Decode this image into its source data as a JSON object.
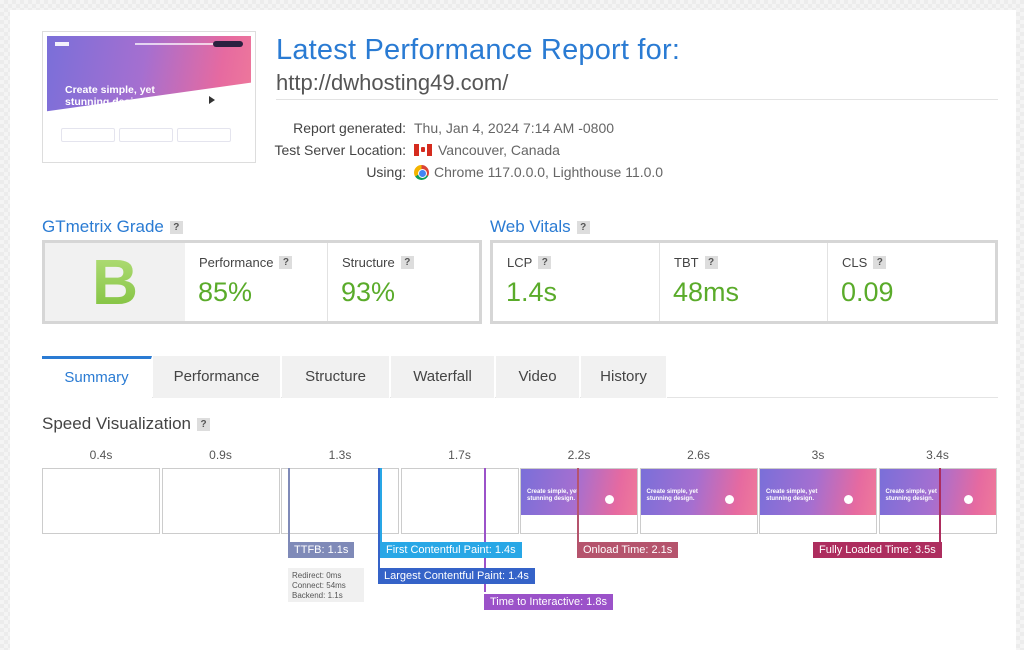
{
  "header": {
    "title": "Latest Performance Report for:",
    "url": "http://dwhosting49.com/",
    "meta": [
      {
        "key": "Report generated:",
        "value": "Thu, Jan 4, 2024 7:14 AM -0800"
      },
      {
        "key": "Test Server Location:",
        "value": "Vancouver, Canada"
      },
      {
        "key": "Using:",
        "value": "Chrome 117.0.0.0, Lighthouse 11.0.0"
      }
    ],
    "thumbnail_headline": "Create simple, yet stunning design."
  },
  "grade": {
    "title": "GTmetrix Grade",
    "help": "?",
    "letter": "B",
    "performance_label": "Performance",
    "performance_value": "85%",
    "structure_label": "Structure",
    "structure_value": "93%"
  },
  "vitals": {
    "title": "Web Vitals",
    "help": "?",
    "lcp_label": "LCP",
    "lcp_value": "1.4s",
    "tbt_label": "TBT",
    "tbt_value": "48ms",
    "cls_label": "CLS",
    "cls_value": "0.09"
  },
  "tabs": [
    {
      "label": "Summary",
      "active": true
    },
    {
      "label": "Performance"
    },
    {
      "label": "Structure"
    },
    {
      "label": "Waterfall"
    },
    {
      "label": "Video"
    },
    {
      "label": "History"
    }
  ],
  "speed": {
    "title": "Speed Visualization",
    "help": "?",
    "times": [
      "0.4s",
      "0.9s",
      "1.3s",
      "1.7s",
      "2.2s",
      "2.6s",
      "3s",
      "3.4s"
    ],
    "frame_text": "Create simple, yet stunning design.",
    "markers": {
      "ttfb": "TTFB: 1.1s",
      "ttfb_redirect": "Redirect: 0ms",
      "ttfb_connect": "Connect: 54ms",
      "ttfb_backend": "Backend: 1.1s",
      "fcp": "First Contentful Paint: 1.4s",
      "lcp": "Largest Contentful Paint: 1.4s",
      "tti": "Time to Interactive: 1.8s",
      "onload": "Onload Time: 2.1s",
      "fully_loaded": "Fully Loaded Time: 3.5s"
    }
  },
  "colors": {
    "accent": "#2a7bd3",
    "good": "#5aab2a",
    "ttfb": "#7f8ab8",
    "fcp": "#28a7e6",
    "lcp": "#3563c8",
    "tti": "#9b52c9",
    "onload": "#b5546d",
    "fully_loaded": "#ad2d5e"
  }
}
